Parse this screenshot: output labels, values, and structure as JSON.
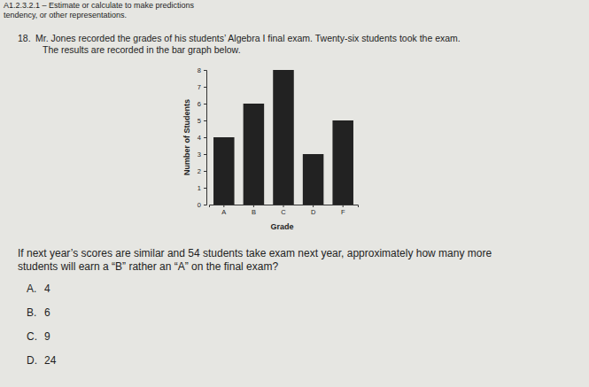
{
  "header": {
    "lines": [
      "A1.2.3.2.1 – Estimate or calculate to make predictions",
      "tendency, or other representations."
    ]
  },
  "question": {
    "number": "18.",
    "lines": [
      "Mr. Jones recorded the grades of his students’ Algebra I final exam.  Twenty-six students took the exam.",
      "The results are recorded in the bar graph below."
    ]
  },
  "chart_data": {
    "type": "bar",
    "x_label": "Grade",
    "y_label": "Number of Students",
    "categories": [
      "A",
      "B",
      "C",
      "D",
      "F"
    ],
    "values": [
      4,
      6,
      8,
      3,
      5
    ],
    "color": "#222222",
    "ylim": [
      0,
      8
    ],
    "yticks": [
      0,
      1,
      2,
      3,
      4,
      5,
      6,
      7,
      8
    ],
    "grid": false
  },
  "prompt": {
    "lines": [
      "If next year’s scores are similar and 54 students take exam next year, approximately how many more",
      "students will earn a “B” rather an “A” on the final exam?"
    ]
  },
  "choices": [
    {
      "letter": "A.",
      "text": "4"
    },
    {
      "letter": "B.",
      "text": "6"
    },
    {
      "letter": "C.",
      "text": "9"
    },
    {
      "letter": "D.",
      "text": "24"
    }
  ]
}
